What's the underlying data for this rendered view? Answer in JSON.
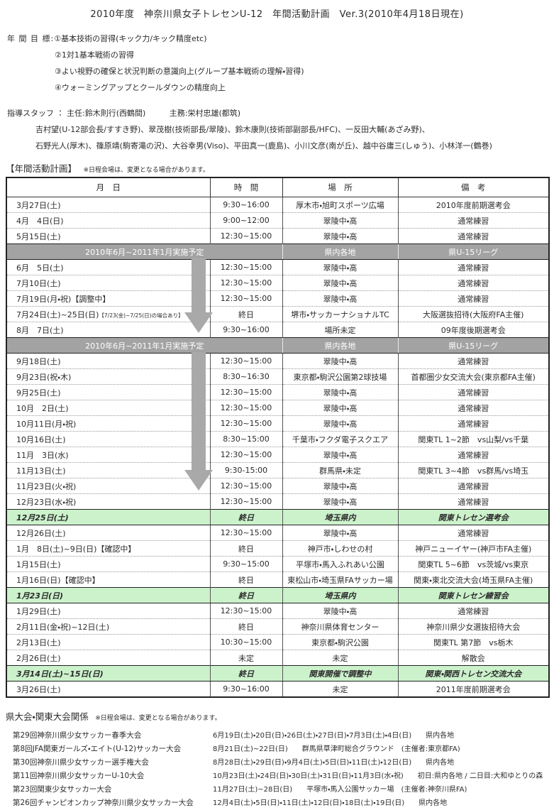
{
  "title": "2010年度　神奈川県女子トレセンU-12　年間活動計画　Ver.3(2010年4月18日現在)",
  "goals": {
    "label": "年 間 目 標:",
    "items": [
      "①基本技術の習得(キック力/キック精度etc)",
      "②1対1基本戦術の習得",
      "③よい視野の確保と状況判断の意識向上(グループ基本戦術の理解・習得)",
      "④ウォーミングアップとクールダウンの精度向上"
    ]
  },
  "staff": {
    "label": "指導スタッフ ：",
    "chief": "主任:鈴木則行(西鶴間)",
    "manager": "主務:栄村忠雄(都筑)",
    "line2": "吉村望(U-12部会長/すすき野)、翠茂樹(技術部長/翠陵)、鈴木康則(技術部副部長/HFC)、一反田大輔(あざみ野)、",
    "line3": "石野光人(厚木)、篠原靖(駒寄滝の沢)、大谷幸男(Viso)、平田真一(鹿島)、小川文彦(南が丘)、越中谷庸三(しゅう)、小林洋一(鶴巻)"
  },
  "plan": {
    "heading": "【年間活動計画】",
    "note": "※日程会場は、変更となる場合があります。",
    "columns": [
      "月　日",
      "時　間",
      "場　所",
      "備　考"
    ],
    "rows": [
      {
        "type": "normal",
        "date": "3月27日(土)",
        "time": "9:30~16:00",
        "place": "厚木市・旭町スポーツ広場",
        "note": "2010年度前期選考会"
      },
      {
        "type": "normal",
        "date": "4月　4日(日)",
        "time": "9:00~12:00",
        "place": "翠陵中・高",
        "note": "通常練習"
      },
      {
        "type": "normal",
        "date": "5月15日(土)",
        "time": "12:30~15:00",
        "place": "翠陵中・高",
        "note": "通常練習"
      },
      {
        "type": "band",
        "date": "2010年6月~2011年1月実施予定",
        "place": "県内各地",
        "note": "県U-15リーグ"
      },
      {
        "type": "normal",
        "date": "6月　5日(土)",
        "time": "12:30~15:00",
        "place": "翠陵中・高",
        "note": "通常練習"
      },
      {
        "type": "normal",
        "date": "7月10日(土)",
        "time": "12:30~15:00",
        "place": "翠陵中・高",
        "note": "通常練習"
      },
      {
        "type": "normal",
        "date": "7月19日(月・祝)【調整中】",
        "time": "12:30~15:00",
        "place": "翠陵中・高",
        "note": "通常練習"
      },
      {
        "type": "normal",
        "date": "7月24日(土)~25日(日)",
        "date_note": "【7/23(金)~7/25(日)の場合あり】",
        "time": "終日",
        "place": "堺市・サッカーナショナルTC",
        "note": "大阪選抜招待(大阪府FA主催)"
      },
      {
        "type": "normal",
        "date": "8月　7日(土)",
        "time": "9:30~16:00",
        "place": "場所未定",
        "note": "09年度後期選考会"
      },
      {
        "type": "band",
        "date": "2010年6月~2011年1月実施予定",
        "place": "県内各地",
        "note": "県U-15リーグ"
      },
      {
        "type": "normal",
        "date": "9月18日(土)",
        "time": "12:30~15:00",
        "place": "翠陵中・高",
        "note": "通常練習"
      },
      {
        "type": "normal",
        "date": "9月23日(祝・木)",
        "time": "8:30~16:30",
        "place": "東京都・駒沢公園第2球技場",
        "note": "首都圏少女交流大会(東京都FA主催)"
      },
      {
        "type": "normal",
        "date": "9月25日(土)",
        "time": "12:30~15:00",
        "place": "翠陵中・高",
        "note": "通常練習"
      },
      {
        "type": "normal",
        "date": "10月　2日(土)",
        "time": "12:30~15:00",
        "place": "翠陵中・高",
        "note": "通常練習"
      },
      {
        "type": "normal",
        "date": "10月11日(月・祝)",
        "time": "12:30~15:00",
        "place": "翠陵中・高",
        "note": "通常練習"
      },
      {
        "type": "normal",
        "date": "10月16日(土)",
        "time": "8:30~15:00",
        "place": "千葉市・フクダ電子スクエア",
        "note": "関東TL 1~2節　vs山梨/vs千葉"
      },
      {
        "type": "normal",
        "date": "11月　3日(水)",
        "time": "12:30~15:00",
        "place": "翠陵中・高",
        "note": "通常練習"
      },
      {
        "type": "normal",
        "date": "11月13日(土)",
        "time": "9:30-15:00",
        "place": "群馬県・未定",
        "note": "関東TL 3~4節　vs群馬/vs埼玉"
      },
      {
        "type": "normal",
        "date": "11月23日(火・祝)",
        "time": "12:30~15:00",
        "place": "翠陵中・高",
        "note": "通常練習"
      },
      {
        "type": "normal",
        "date": "12月23日(水・祝)",
        "time": "12:30~15:00",
        "place": "翠陵中・高",
        "note": "通常練習"
      },
      {
        "type": "green",
        "date": "12月25日(土)",
        "time": "終日",
        "place": "埼玉県内",
        "note": "関東トレセン選考会"
      },
      {
        "type": "normal",
        "date": "12月26日(土)",
        "time": "12:30~15:00",
        "place": "翠陵中・高",
        "note": "通常練習"
      },
      {
        "type": "normal",
        "date": "1月　8日(土)~9日(日)【確認中】",
        "time": "終日",
        "place": "神戸市・しわせの村",
        "note": "神戸ニューイヤー(神戸市FA主催)"
      },
      {
        "type": "normal",
        "date": "1月15日(土)",
        "time": "9:30~15:00",
        "place": "平塚市・馬入ふれあい公園",
        "note": "関東TL 5~6節　vs茨城/vs東京"
      },
      {
        "type": "normal",
        "date": "1月16日(日)【確認中】",
        "time": "終日",
        "place": "東松山市・埼玉県FAサッカー場",
        "note": "関東・東北交流大会(埼玉県FA主催)"
      },
      {
        "type": "green",
        "date": "1月23日(日)",
        "time": "終日",
        "place": "埼玉県内",
        "note": "関東トレセン練習会"
      },
      {
        "type": "normal",
        "date": "1月29日(土)",
        "time": "12:30~15:00",
        "place": "翠陵中・高",
        "note": "通常練習"
      },
      {
        "type": "normal",
        "date": "2月11日(金・祝)~12日(土)",
        "time": "終日",
        "place": "神奈川県体育センター",
        "note": "神奈川県少女選抜招待大会"
      },
      {
        "type": "normal",
        "date": "2月13日(土)",
        "time": "10:30~15:00",
        "place": "東京都・駒沢公園",
        "note": "関東TL 第7節　vs栃木"
      },
      {
        "type": "normal",
        "date": "2月26日(土)",
        "time": "未定",
        "place": "未定",
        "note": "解散会"
      },
      {
        "type": "green",
        "date": "3月14日(土)~15日(日)",
        "time": "終日",
        "place": "関東開催で調整中",
        "note": "関東・関西トレセン交流大会"
      },
      {
        "type": "normal",
        "date": "3月26日(土)",
        "time": "9:30~16:00",
        "place": "未定",
        "note": "2011年度前期選考会"
      }
    ]
  },
  "tournaments": {
    "heading": "県大会・関東大会関係",
    "note": "※日程会場は、変更となる場合があります。",
    "items": [
      {
        "name": "第29回神奈川県少女サッカー春季大会",
        "detail": "6月19日(土)・20日(日)・26日(土)・27日(日)・7月3日(土)・4日(日)　　県内各地"
      },
      {
        "name": "第8回JFA関東ガールズ・エイト(U-12)サッカー大会",
        "detail": "8月21日(土)~22日(日)　　群馬県草津町総合グラウンド　(主催者:東京都FA)"
      },
      {
        "name": "第30回神奈川県少女サッカー選手権大会",
        "detail": "8月28日(土)・29日(日)・9月4日(土)・5日(日)・11日(土)・12日(日)　　県内各地"
      },
      {
        "name": "第11回神奈川県少女サッカーU-10大会",
        "detail": "10月23日(土)・24日(日)・30日(土)・31日(日)・11月3日(水・祝)　　初日:県内各地 / 二日目:大和ゆとりの森"
      },
      {
        "name": "第23回関東少女サッカー大会",
        "detail": "11月27日(土)~28日(日)　　平塚市・馬入公園サッカー場　(主催者:神奈川県FA)"
      },
      {
        "name": "第26回チャンピオンカップ神奈川県少女サッカー大会",
        "detail": "12月4日(土)・5日(日)・11日(土)・12日(日)・18日(土)・19日(日)　　県内各地"
      }
    ]
  },
  "colors": {
    "band_bg": "#a3a3a3",
    "band_text": "#ffffff",
    "highlight_bg": "#ccf2cc",
    "arrow": "#a9a9a9"
  }
}
